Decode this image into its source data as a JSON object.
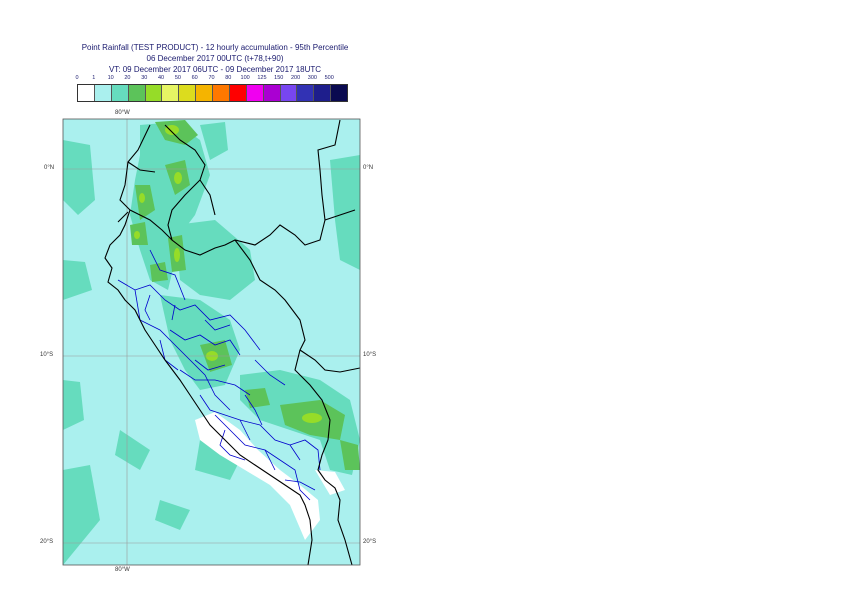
{
  "title": {
    "line1": "Point Rainfall (TEST PRODUCT) - 12 hourly accumulation - 95th Percentile",
    "line2": "06 December 2017 00UTC (t+78,t+90)",
    "line3": "VT: 09 December 2017 06UTC - 09 December 2017 18UTC"
  },
  "legend": {
    "thresholds": [
      "0",
      "1",
      "10",
      "20",
      "30",
      "40",
      "50",
      "60",
      "70",
      "80",
      "100",
      "125",
      "150",
      "200",
      "300",
      "500"
    ],
    "colors": [
      "#ffffff",
      "#aaf0ee",
      "#66dcbe",
      "#5cc35a",
      "#96dc28",
      "#e6f564",
      "#dcdc1e",
      "#f5b400",
      "#ff7800",
      "#ff0000",
      "#f000f0",
      "#aa00d2",
      "#7846f0",
      "#3232b4",
      "#1e1e8c",
      "#0a0a50"
    ]
  },
  "map": {
    "lon_label_top": "80°W",
    "lon_label_bottom": "80°W",
    "lat_labels": [
      "0°N",
      "10°S",
      "20°S"
    ],
    "colors": {
      "sea": "#aaf0ee",
      "band10": "#66dcbe",
      "band20": "#5cc35a",
      "band30": "#96dc28",
      "dry": "#ffffff",
      "border": "#000000",
      "region": "#0000cc",
      "grid": "#999999"
    }
  }
}
